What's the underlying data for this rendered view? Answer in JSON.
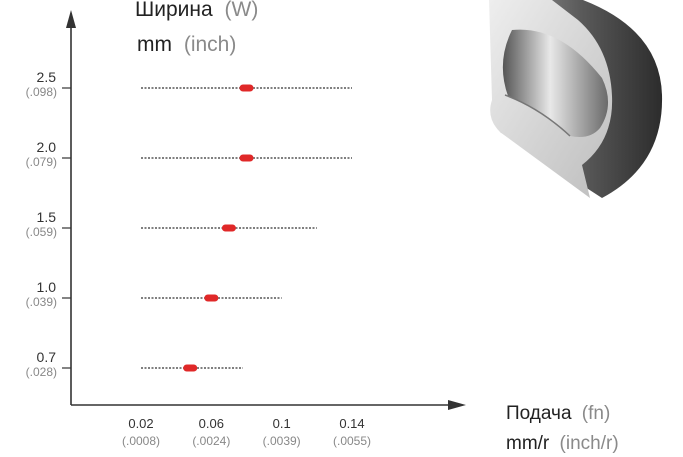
{
  "chart_data": {
    "type": "range-dot",
    "y_title": {
      "name": "Ширина",
      "symbol": "(W)"
    },
    "y_unit": {
      "main": "mm",
      "alt": "(inch)"
    },
    "x_title": {
      "name": "Подача",
      "symbol": "(fn)"
    },
    "x_unit": {
      "main": "mm/r",
      "alt": "(inch/r)"
    },
    "x_ticks": [
      {
        "value": 0.02,
        "label": "0.02",
        "sub": "(.0008)"
      },
      {
        "value": 0.06,
        "label": "0.06",
        "sub": "(.0024)"
      },
      {
        "value": 0.1,
        "label": "0.1",
        "sub": "(.0039)"
      },
      {
        "value": 0.14,
        "label": "0.14",
        "sub": "(.0055)"
      }
    ],
    "xlim": [
      -0.02,
      0.2
    ],
    "rows": [
      {
        "label": "2.5",
        "sub": "(.098)",
        "min": 0.02,
        "max": 0.14,
        "recommended": 0.08
      },
      {
        "label": "2.0",
        "sub": "(.079)",
        "min": 0.02,
        "max": 0.14,
        "recommended": 0.08
      },
      {
        "label": "1.5",
        "sub": "(.059)",
        "min": 0.02,
        "max": 0.12,
        "recommended": 0.07
      },
      {
        "label": "1.0",
        "sub": "(.039)",
        "min": 0.02,
        "max": 0.1,
        "recommended": 0.06
      },
      {
        "label": "0.7",
        "sub": "(.028)",
        "min": 0.02,
        "max": 0.078,
        "recommended": 0.048
      }
    ],
    "colors": {
      "range": "#555555",
      "recommended": "#e02828",
      "axis": "#333333"
    }
  }
}
